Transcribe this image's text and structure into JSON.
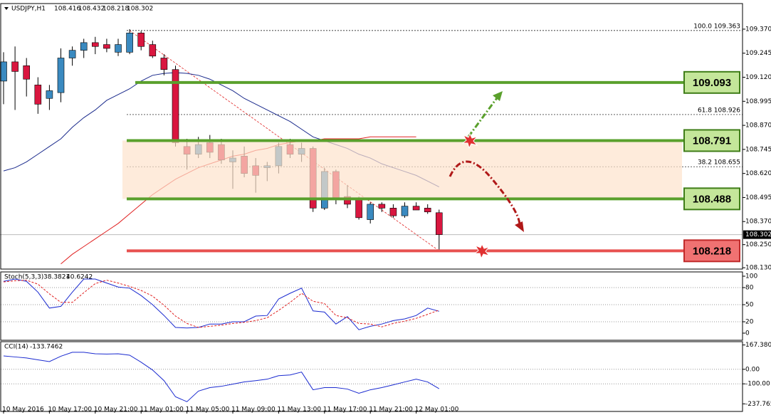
{
  "chart_data": {
    "type": "candlestick",
    "title": "USDJPY,H1",
    "categories": [
      "10 May 2016",
      null,
      null,
      null,
      "10 May 17:00",
      null,
      null,
      null,
      "10 May 21:00",
      null,
      null,
      null,
      "11 May 01:00",
      null,
      null,
      null,
      "11 May 05:00",
      null,
      null,
      null,
      "11 May 09:00",
      null,
      null,
      null,
      "11 May 13:00",
      null,
      null,
      null,
      "11 May 17:00",
      null,
      null,
      null,
      "11 May 21:00",
      null,
      null,
      null,
      "12 May 01:00",
      null,
      null
    ],
    "open": [
      109.1,
      109.2,
      109.18,
      109.08,
      109.01,
      109.04,
      109.22,
      109.26,
      109.3,
      109.29,
      109.25,
      109.25,
      109.35,
      109.29,
      109.22,
      109.16,
      108.76,
      108.72,
      108.78,
      108.77,
      108.68,
      108.71,
      108.66,
      108.65,
      108.66,
      108.77,
      108.72,
      108.75,
      108.44,
      108.63,
      108.5,
      108.49,
      108.38,
      108.46,
      108.44,
      108.4,
      108.45,
      108.44,
      108.416
    ],
    "high": [
      109.25,
      109.28,
      109.22,
      109.12,
      109.08,
      109.27,
      109.28,
      109.32,
      109.33,
      109.32,
      109.32,
      109.37,
      109.36,
      109.31,
      109.24,
      109.18,
      108.8,
      108.81,
      108.82,
      108.8,
      108.74,
      108.76,
      108.7,
      108.68,
      108.78,
      108.8,
      108.78,
      108.76,
      108.65,
      108.64,
      108.56,
      108.5,
      108.47,
      108.47,
      108.46,
      108.47,
      108.47,
      108.46,
      108.432
    ],
    "low": [
      108.98,
      108.95,
      109.02,
      108.93,
      108.95,
      108.99,
      109.18,
      109.22,
      109.24,
      109.25,
      109.23,
      109.24,
      109.26,
      109.22,
      109.13,
      108.76,
      108.64,
      108.7,
      108.7,
      108.67,
      108.54,
      108.6,
      108.52,
      108.58,
      108.62,
      108.7,
      108.68,
      108.42,
      108.43,
      108.46,
      108.44,
      108.38,
      108.36,
      108.42,
      108.39,
      108.39,
      108.43,
      108.41,
      108.218
    ],
    "close": [
      109.2,
      109.15,
      109.11,
      108.98,
      109.05,
      109.22,
      109.26,
      109.3,
      109.28,
      109.27,
      109.29,
      109.35,
      109.28,
      109.23,
      109.16,
      108.78,
      108.72,
      108.77,
      108.73,
      108.69,
      108.7,
      108.62,
      108.61,
      108.66,
      108.76,
      108.72,
      108.75,
      108.44,
      108.63,
      108.49,
      108.46,
      108.39,
      108.46,
      108.44,
      108.4,
      108.45,
      108.43,
      108.42,
      108.302
    ],
    "up_color": "#3a8ac0",
    "down_color": "#d9163f",
    "ylim": [
      108.123,
      109.503
    ],
    "yticks": [
      {
        "value": 109.37,
        "label": "109.370"
      },
      109.245,
      {
        "value": 109.12,
        "label": "109.120"
      },
      108.995,
      {
        "value": 108.87,
        "label": "108.870"
      },
      108.745,
      {
        "value": 108.62,
        "label": "108.620"
      },
      108.495,
      {
        "value": 108.37,
        "label": "108.370"
      },
      {
        "value": 108.25,
        "label": "108.250"
      },
      {
        "value": 108.13,
        "label": "108.130"
      }
    ],
    "moving_averages": [
      {
        "color": "#1a2a8c",
        "values": [
          108.633,
          108.65,
          108.68,
          108.72,
          108.76,
          108.8,
          108.86,
          108.91,
          108.95,
          109.0,
          109.03,
          109.06,
          109.1,
          109.13,
          109.14,
          109.144,
          109.14,
          109.13,
          109.11,
          109.08,
          109.05,
          109.01,
          108.98,
          108.95,
          108.92,
          108.89,
          108.85,
          108.81,
          108.79,
          108.77,
          108.75,
          108.72,
          108.7,
          108.67,
          108.65,
          108.63,
          108.61,
          108.58,
          108.55
        ]
      },
      {
        "color": "#e02020",
        "values": [
          null,
          null,
          null,
          null,
          null,
          108.15,
          108.2,
          108.24,
          108.28,
          108.32,
          108.36,
          108.41,
          108.46,
          108.51,
          108.55,
          108.59,
          108.62,
          108.65,
          108.67,
          108.69,
          108.71,
          108.72,
          108.74,
          108.75,
          108.77,
          108.78,
          108.79,
          108.79,
          108.8,
          108.8,
          108.8,
          108.8,
          108.81,
          108.81,
          108.81,
          108.81,
          108.81,
          null,
          null
        ]
      }
    ],
    "levels": [
      {
        "value": 109.093,
        "color": "#5aa02c",
        "box": "#c4e69a",
        "border": "#3f7d18"
      },
      {
        "value": 108.791,
        "color": "#5aa02c",
        "box": "#c4e69a",
        "border": "#3f7d18"
      },
      {
        "value": 108.488,
        "color": "#5aa02c",
        "box": "#c4e69a",
        "border": "#3f7d18"
      },
      {
        "value": 108.218,
        "color": "#e8504f",
        "box": "#f07272",
        "border": "#c02a2a"
      }
    ],
    "zone_color": "#fde2cc",
    "fib_levels": [
      {
        "ratio": {
          "value": 100,
          "label": "100.0"
        },
        "value": 109.363
      },
      {
        "ratio": 61.8,
        "value": 108.926
      },
      {
        "ratio": 38.2,
        "value": 108.655
      }
    ],
    "stoch": {
      "name": "Stoch(5,3,3)",
      "ylim": [
        -12.5,
        107.5
      ],
      "yticks": [
        100,
        80,
        50,
        20,
        0
      ],
      "series": [
        {
          "color": "#1a2ad0",
          "values": [
            91,
            95,
            91,
            72,
            44,
            47,
            72,
            95,
            95,
            88,
            81,
            79,
            66,
            50,
            31,
            10,
            9,
            10,
            16,
            16,
            20,
            20,
            30,
            31,
            60,
            70,
            79,
            39,
            37,
            16,
            29,
            6,
            12,
            16,
            22,
            25,
            31,
            44,
            38.3821
          ]
        },
        {
          "color": "#e02020",
          "values": [
            90,
            92,
            93,
            86,
            69,
            54,
            54,
            71,
            87,
            93,
            88,
            82,
            75,
            65,
            49,
            30,
            17,
            10,
            12,
            14,
            17,
            19,
            22,
            27,
            40,
            54,
            70,
            56,
            52,
            31,
            27,
            17,
            16,
            11,
            17,
            21,
            26,
            33,
            40.6242
          ]
        }
      ]
    },
    "cci": {
      "name": "CCI(14)",
      "ylim": [
        -290,
        190
      ],
      "yticks": [
        167.3807,
        {
          "value": 0,
          "label": "0.00"
        },
        {
          "value": -100,
          "label": "-100.00"
        },
        -237.7654
      ],
      "series": [
        {
          "color": "#1a2ad0",
          "values": [
            92,
            85,
            78,
            65,
            53,
            90,
            117,
            117,
            107,
            105,
            107,
            97,
            49,
            -5,
            -78,
            -189,
            -223,
            -150,
            -126,
            -117,
            -102,
            -87,
            -78,
            -68,
            -44,
            -39,
            -19,
            -141,
            -126,
            -126,
            -136,
            -165,
            -141,
            -126,
            -107,
            -87,
            -68,
            -87,
            -133.7462
          ]
        }
      ]
    }
  }
}
